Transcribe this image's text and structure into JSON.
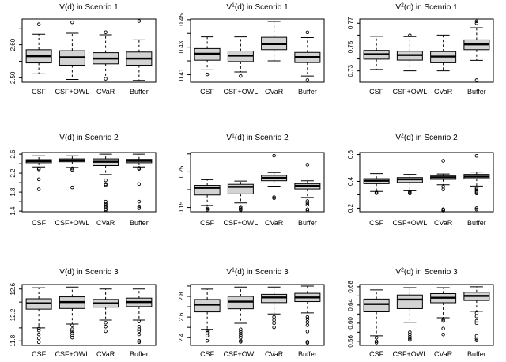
{
  "colors": {
    "background": "#ffffff",
    "box_fill": "#d3d3d3",
    "line": "#000000"
  },
  "chart_data": {
    "type": "boxplot_grid",
    "grid": "3x3",
    "categories": [
      "CSF",
      "CSF+OWL",
      "CVaR",
      "Buffer"
    ],
    "panels": [
      {
        "id": "vd-scenario-1",
        "title": {
          "pre": "V",
          "sup": "",
          "post": "(d) in Scenrio 1"
        },
        "ylim": [
          2.4865,
          2.678
        ],
        "ticks": [
          {
            "v": 2.5,
            "t": "2.50"
          },
          {
            "v": 2.55
          },
          {
            "v": 2.6,
            "t": "2.60"
          },
          {
            "v": 2.65
          }
        ],
        "boxes": [
          {
            "name": "CSF",
            "lo": 2.512,
            "q1": 2.545,
            "med": 2.565,
            "q3": 2.585,
            "hi": 2.632,
            "out": [
              2.662
            ]
          },
          {
            "name": "CSF+OWL",
            "lo": 2.495,
            "q1": 2.538,
            "med": 2.562,
            "q3": 2.582,
            "hi": 2.635,
            "out": [
              2.668
            ]
          },
          {
            "name": "CVaR",
            "lo": 2.502,
            "q1": 2.542,
            "med": 2.558,
            "q3": 2.576,
            "hi": 2.63,
            "out": [
              2.638,
              2.497
            ]
          },
          {
            "name": "Buffer",
            "lo": 2.492,
            "q1": 2.538,
            "med": 2.558,
            "q3": 2.578,
            "hi": 2.615,
            "out": [
              2.672
            ]
          }
        ]
      },
      {
        "id": "v1d-scenario-1",
        "title": {
          "pre": "V",
          "sup": "1",
          "post": "(d) in Scenrio 1"
        },
        "ylim": [
          0.4045,
          0.4505
        ],
        "ticks": [
          {
            "v": 0.41,
            "t": "0.41"
          },
          {
            "v": 0.42
          },
          {
            "v": 0.43,
            "t": "0.43"
          },
          {
            "v": 0.44
          },
          {
            "v": 0.45,
            "t": "0.45"
          }
        ],
        "boxes": [
          {
            "name": "CSF",
            "lo": 0.4135,
            "q1": 0.4205,
            "med": 0.4252,
            "q3": 0.429,
            "hi": 0.4375,
            "out": [
              0.4102
            ]
          },
          {
            "name": "CSF+OWL",
            "lo": 0.412,
            "q1": 0.4195,
            "med": 0.4238,
            "q3": 0.4272,
            "hi": 0.4375,
            "out": [
              0.409
            ]
          },
          {
            "name": "CVaR",
            "lo": 0.42,
            "q1": 0.4282,
            "med": 0.4322,
            "q3": 0.4372,
            "hi": 0.4488,
            "out": []
          },
          {
            "name": "Buffer",
            "lo": 0.409,
            "q1": 0.4188,
            "med": 0.4228,
            "q3": 0.4262,
            "hi": 0.437,
            "out": [
              0.4408,
              0.406
            ]
          }
        ]
      },
      {
        "id": "v2d-scenario-1",
        "title": {
          "pre": "V",
          "sup": "2",
          "post": "(d) in Scenrio 1"
        },
        "ylim": [
          0.7205,
          0.7735
        ],
        "ticks": [
          {
            "v": 0.73,
            "t": "0.73"
          },
          {
            "v": 0.74
          },
          {
            "v": 0.75,
            "t": "0.75"
          },
          {
            "v": 0.76
          },
          {
            "v": 0.77,
            "t": "0.77"
          }
        ],
        "boxes": [
          {
            "name": "CSF",
            "lo": 0.7312,
            "q1": 0.7398,
            "med": 0.744,
            "q3": 0.7472,
            "hi": 0.759,
            "out": []
          },
          {
            "name": "CSF+OWL",
            "lo": 0.73,
            "q1": 0.739,
            "med": 0.7432,
            "q3": 0.7465,
            "hi": 0.7588,
            "out": [
              0.7598
            ]
          },
          {
            "name": "CVaR",
            "lo": 0.73,
            "q1": 0.7368,
            "med": 0.742,
            "q3": 0.7462,
            "hi": 0.76,
            "out": []
          },
          {
            "name": "Buffer",
            "lo": 0.7388,
            "q1": 0.7478,
            "med": 0.7522,
            "q3": 0.756,
            "hi": 0.7662,
            "out": [
              0.77,
              0.7716,
              0.7222
            ]
          }
        ]
      },
      {
        "id": "vd-scenario-2",
        "title": {
          "pre": "V",
          "sup": "",
          "post": "(d) in Scenrio 2"
        },
        "ylim": [
          1.385,
          2.635
        ],
        "ticks": [
          {
            "v": 1.4,
            "t": "1.4"
          },
          {
            "v": 1.6
          },
          {
            "v": 1.8,
            "t": "1.8"
          },
          {
            "v": 2.0
          },
          {
            "v": 2.2,
            "t": "2.2"
          },
          {
            "v": 2.4
          },
          {
            "v": 2.6,
            "t": "2.6"
          }
        ],
        "boxes": [
          {
            "name": "CSF",
            "lo": 2.33,
            "q1": 2.42,
            "med": 2.455,
            "q3": 2.485,
            "hi": 2.565,
            "out": [
              2.3,
              2.28,
              2.07,
              1.86
            ]
          },
          {
            "name": "CSF+OWL",
            "lo": 2.32,
            "q1": 2.44,
            "med": 2.47,
            "q3": 2.5,
            "hi": 2.565,
            "out": [
              2.3,
              2.27,
              1.9
            ]
          },
          {
            "name": "CVaR",
            "lo": 2.17,
            "q1": 2.36,
            "med": 2.44,
            "q3": 2.5,
            "hi": 2.6,
            "out": [
              2.05,
              1.97,
              1.95,
              1.6,
              1.56,
              1.53,
              1.5,
              1.47,
              1.44,
              1.42
            ]
          },
          {
            "name": "Buffer",
            "lo": 2.33,
            "q1": 2.42,
            "med": 2.46,
            "q3": 2.49,
            "hi": 2.6,
            "out": [
              2.31,
              2.29,
              1.97,
              1.6,
              1.5,
              1.46
            ]
          }
        ]
      },
      {
        "id": "v1d-scenario-2",
        "title": {
          "pre": "V",
          "sup": "1",
          "post": "(d) in Scenrio 2"
        },
        "ylim": [
          0.138,
          0.304
        ],
        "ticks": [
          {
            "v": 0.15,
            "t": "0.15"
          },
          {
            "v": 0.2
          },
          {
            "v": 0.25,
            "t": "0.25"
          },
          {
            "v": 0.3
          }
        ],
        "boxes": [
          {
            "name": "CSF",
            "lo": 0.156,
            "q1": 0.185,
            "med": 0.205,
            "q3": 0.212,
            "hi": 0.228,
            "out": [
              0.147,
              0.144
            ]
          },
          {
            "name": "CSF+OWL",
            "lo": 0.163,
            "q1": 0.188,
            "med": 0.208,
            "q3": 0.215,
            "hi": 0.224,
            "out": [
              0.152,
              0.148,
              0.145,
              0.143
            ]
          },
          {
            "name": "CVaR",
            "lo": 0.21,
            "q1": 0.225,
            "med": 0.233,
            "q3": 0.24,
            "hi": 0.248,
            "out": [
              0.295,
              0.179,
              0.176
            ]
          },
          {
            "name": "Buffer",
            "lo": 0.178,
            "q1": 0.202,
            "med": 0.211,
            "q3": 0.217,
            "hi": 0.225,
            "out": [
              0.27,
              0.168,
              0.163,
              0.158,
              0.145,
              0.142
            ]
          }
        ]
      },
      {
        "id": "v2d-scenario-2",
        "title": {
          "pre": "V",
          "sup": "2",
          "post": "(d) in Scenrio 2"
        },
        "ylim": [
          0.173,
          0.615
        ],
        "ticks": [
          {
            "v": 0.2,
            "t": "0.2"
          },
          {
            "v": 0.3
          },
          {
            "v": 0.4,
            "t": "0.4"
          },
          {
            "v": 0.5
          },
          {
            "v": 0.6,
            "t": "0.6"
          }
        ],
        "boxes": [
          {
            "name": "CSF",
            "lo": 0.325,
            "q1": 0.383,
            "med": 0.405,
            "q3": 0.42,
            "hi": 0.458,
            "out": [
              0.318,
              0.312
            ]
          },
          {
            "name": "CSF+OWL",
            "lo": 0.33,
            "q1": 0.392,
            "med": 0.415,
            "q3": 0.428,
            "hi": 0.452,
            "out": [
              0.322,
              0.315,
              0.31
            ]
          },
          {
            "name": "CVaR",
            "lo": 0.375,
            "q1": 0.415,
            "med": 0.43,
            "q3": 0.44,
            "hi": 0.455,
            "out": [
              0.553,
              0.36,
              0.34,
              0.192,
              0.186,
              0.182
            ]
          },
          {
            "name": "Buffer",
            "lo": 0.365,
            "q1": 0.42,
            "med": 0.435,
            "q3": 0.452,
            "hi": 0.47,
            "out": [
              0.59,
              0.35,
              0.34,
              0.33,
              0.32,
              0.31,
              0.2,
              0.19
            ]
          }
        ]
      },
      {
        "id": "vd-scenario-3",
        "title": {
          "pre": "V",
          "sup": "",
          "post": "(d) in Scenrio 3"
        },
        "ylim": [
          11.73,
          12.67
        ],
        "ticks": [
          {
            "v": 11.8,
            "t": "11.8"
          },
          {
            "v": 12.0
          },
          {
            "v": 12.2,
            "t": "12.2"
          },
          {
            "v": 12.4
          },
          {
            "v": 12.6,
            "t": "12.6"
          }
        ],
        "boxes": [
          {
            "name": "CSF",
            "lo": 12.0,
            "q1": 12.29,
            "med": 12.38,
            "q3": 12.45,
            "hi": 12.62,
            "out": [
              11.99,
              11.96,
              11.9,
              11.84,
              11.78
            ]
          },
          {
            "name": "CSF+OWL",
            "lo": 12.06,
            "q1": 12.3,
            "med": 12.4,
            "q3": 12.48,
            "hi": 12.63,
            "out": [
              12.04,
              11.98,
              11.95,
              11.92,
              11.88,
              11.85
            ]
          },
          {
            "name": "CVaR",
            "lo": 12.12,
            "q1": 12.32,
            "med": 12.38,
            "q3": 12.44,
            "hi": 12.6,
            "out": [
              12.08,
              12.02,
              11.95
            ]
          },
          {
            "name": "Buffer",
            "lo": 12.12,
            "q1": 12.33,
            "med": 12.4,
            "q3": 12.46,
            "hi": 12.6,
            "out": [
              12.1,
              12.02,
              11.98,
              11.95,
              11.9,
              11.8,
              11.78
            ]
          }
        ]
      },
      {
        "id": "v1d-scenario-3",
        "title": {
          "pre": "V",
          "sup": "1",
          "post": "(d) in Scenrio 3"
        },
        "ylim": [
          2.325,
          2.915
        ],
        "ticks": [
          {
            "v": 2.4,
            "t": "2.4"
          },
          {
            "v": 2.5
          },
          {
            "v": 2.6,
            "t": "2.6"
          },
          {
            "v": 2.7
          },
          {
            "v": 2.8,
            "t": "2.8"
          },
          {
            "v": 2.9
          }
        ],
        "boxes": [
          {
            "name": "CSF",
            "lo": 2.48,
            "q1": 2.65,
            "med": 2.72,
            "q3": 2.77,
            "hi": 2.87,
            "out": [
              2.47,
              2.45,
              2.42,
              2.37
            ]
          },
          {
            "name": "CSF+OWL",
            "lo": 2.54,
            "q1": 2.68,
            "med": 2.75,
            "q3": 2.8,
            "hi": 2.89,
            "out": [
              2.48,
              2.46,
              2.44,
              2.42,
              2.4,
              2.37,
              2.36
            ]
          },
          {
            "name": "CVaR",
            "lo": 2.63,
            "q1": 2.74,
            "med": 2.79,
            "q3": 2.82,
            "hi": 2.89,
            "out": [
              2.6,
              2.57,
              2.54,
              2.5
            ]
          },
          {
            "name": "Buffer",
            "lo": 2.64,
            "q1": 2.75,
            "med": 2.79,
            "q3": 2.83,
            "hi": 2.9,
            "out": [
              2.6,
              2.58,
              2.55,
              2.52,
              2.46,
              2.36,
              2.35
            ]
          }
        ]
      },
      {
        "id": "v2d-scenario-3",
        "title": {
          "pre": "V",
          "sup": "2",
          "post": "(d) in Scenrio 3"
        },
        "ylim": [
          0.551,
          0.685
        ],
        "ticks": [
          {
            "v": 0.56,
            "t": "0.56"
          },
          {
            "v": 0.58
          },
          {
            "v": 0.6,
            "t": "0.60"
          },
          {
            "v": 0.62
          },
          {
            "v": 0.64,
            "t": "0.64"
          },
          {
            "v": 0.66
          },
          {
            "v": 0.68,
            "t": "0.68"
          }
        ],
        "boxes": [
          {
            "name": "CSF",
            "lo": 0.572,
            "q1": 0.625,
            "med": 0.642,
            "q3": 0.653,
            "hi": 0.673,
            "out": [
              0.568,
              0.56,
              0.557
            ]
          },
          {
            "name": "CSF+OWL",
            "lo": 0.602,
            "q1": 0.632,
            "med": 0.652,
            "q3": 0.662,
            "hi": 0.678,
            "out": [
              0.58,
              0.575,
              0.57,
              0.566,
              0.563
            ]
          },
          {
            "name": "CVaR",
            "lo": 0.612,
            "q1": 0.645,
            "med": 0.656,
            "q3": 0.665,
            "hi": 0.678,
            "out": [
              0.608,
              0.605,
              0.588,
              0.575
            ]
          },
          {
            "name": "Buffer",
            "lo": 0.626,
            "q1": 0.65,
            "med": 0.66,
            "q3": 0.668,
            "hi": 0.68,
            "out": [
              0.622,
              0.615,
              0.605,
              0.6,
              0.572,
              0.566,
              0.562
            ]
          }
        ]
      }
    ]
  }
}
